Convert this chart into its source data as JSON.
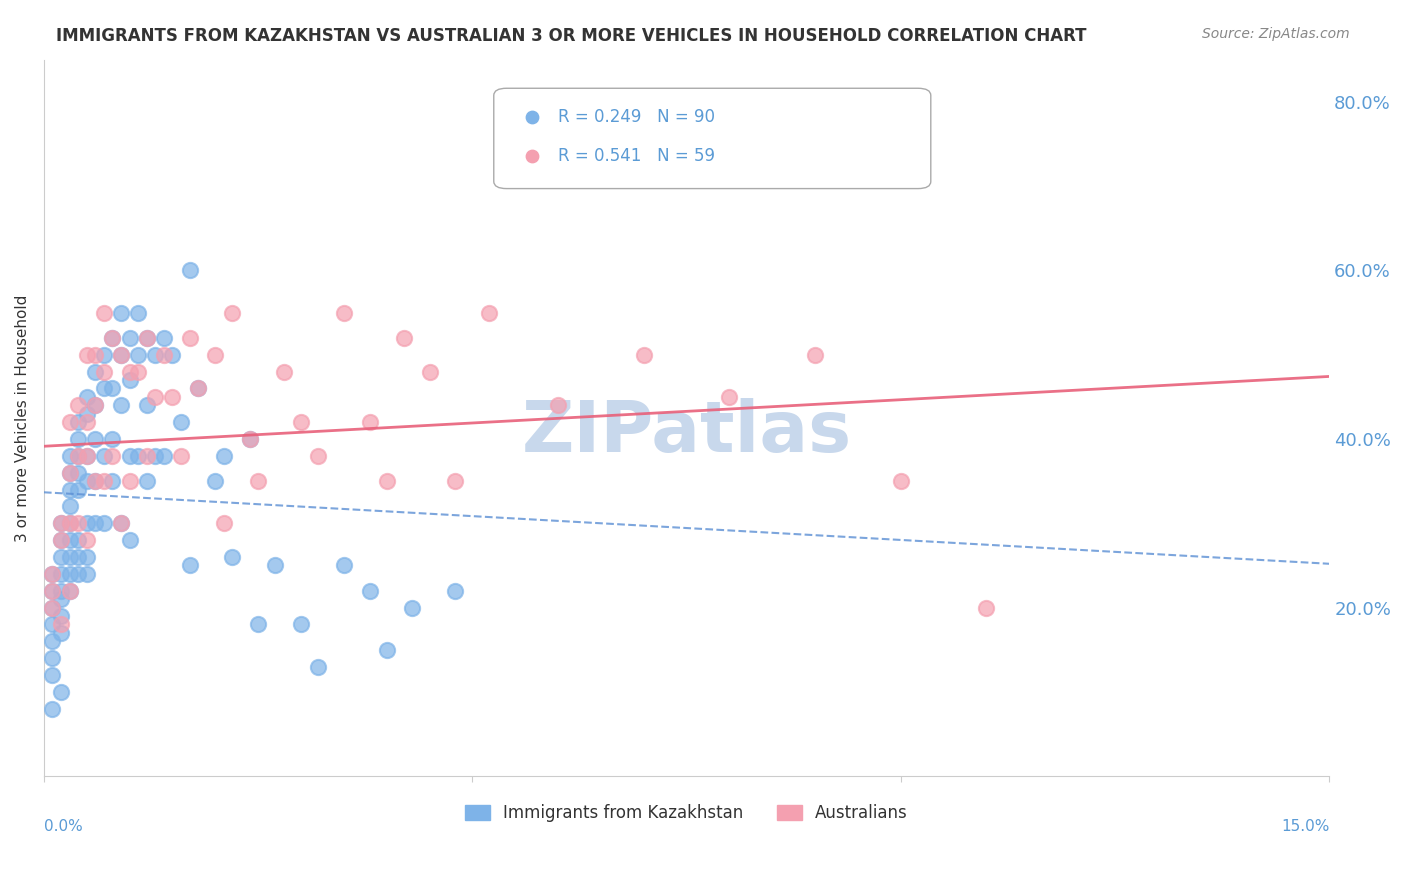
{
  "title": "IMMIGRANTS FROM KAZAKHSTAN VS AUSTRALIAN 3 OR MORE VEHICLES IN HOUSEHOLD CORRELATION CHART",
  "source": "Source: ZipAtlas.com",
  "xlabel_bottom_left": "0.0%",
  "xlabel_bottom_right": "15.0%",
  "ylabel": "3 or more Vehicles in Household",
  "right_yticks": [
    "20.0%",
    "40.0%",
    "60.0%",
    "80.0%"
  ],
  "right_ytick_vals": [
    0.2,
    0.4,
    0.6,
    0.8
  ],
  "xlim": [
    0.0,
    0.15
  ],
  "ylim": [
    0.0,
    0.85
  ],
  "series": [
    {
      "label": "Immigrants from Kazakhstan",
      "R": 0.249,
      "N": 90,
      "color": "#7EB3E8",
      "line_color": "#5B8FD4",
      "line_style": "dashed",
      "x": [
        0.001,
        0.001,
        0.001,
        0.001,
        0.001,
        0.001,
        0.001,
        0.001,
        0.002,
        0.002,
        0.002,
        0.002,
        0.002,
        0.002,
        0.002,
        0.002,
        0.002,
        0.003,
        0.003,
        0.003,
        0.003,
        0.003,
        0.003,
        0.003,
        0.003,
        0.003,
        0.004,
        0.004,
        0.004,
        0.004,
        0.004,
        0.004,
        0.004,
        0.004,
        0.005,
        0.005,
        0.005,
        0.005,
        0.005,
        0.005,
        0.005,
        0.006,
        0.006,
        0.006,
        0.006,
        0.006,
        0.007,
        0.007,
        0.007,
        0.007,
        0.008,
        0.008,
        0.008,
        0.008,
        0.009,
        0.009,
        0.009,
        0.009,
        0.01,
        0.01,
        0.01,
        0.01,
        0.011,
        0.011,
        0.011,
        0.012,
        0.012,
        0.012,
        0.013,
        0.013,
        0.014,
        0.014,
        0.015,
        0.016,
        0.017,
        0.017,
        0.018,
        0.02,
        0.021,
        0.022,
        0.024,
        0.025,
        0.027,
        0.03,
        0.032,
        0.035,
        0.038,
        0.04,
        0.043,
        0.048
      ],
      "y": [
        0.24,
        0.22,
        0.2,
        0.18,
        0.16,
        0.14,
        0.12,
        0.08,
        0.3,
        0.28,
        0.26,
        0.24,
        0.22,
        0.21,
        0.19,
        0.17,
        0.1,
        0.38,
        0.36,
        0.34,
        0.32,
        0.3,
        0.28,
        0.26,
        0.24,
        0.22,
        0.42,
        0.4,
        0.38,
        0.36,
        0.34,
        0.28,
        0.26,
        0.24,
        0.45,
        0.43,
        0.38,
        0.35,
        0.3,
        0.26,
        0.24,
        0.48,
        0.44,
        0.4,
        0.35,
        0.3,
        0.5,
        0.46,
        0.38,
        0.3,
        0.52,
        0.46,
        0.4,
        0.35,
        0.55,
        0.5,
        0.44,
        0.3,
        0.52,
        0.47,
        0.38,
        0.28,
        0.55,
        0.5,
        0.38,
        0.52,
        0.44,
        0.35,
        0.5,
        0.38,
        0.52,
        0.38,
        0.5,
        0.42,
        0.6,
        0.25,
        0.46,
        0.35,
        0.38,
        0.26,
        0.4,
        0.18,
        0.25,
        0.18,
        0.13,
        0.25,
        0.22,
        0.15,
        0.2,
        0.22
      ]
    },
    {
      "label": "Australians",
      "R": 0.541,
      "N": 59,
      "color": "#F4A0B0",
      "line_color": "#E8607A",
      "line_style": "solid",
      "x": [
        0.001,
        0.001,
        0.001,
        0.002,
        0.002,
        0.002,
        0.003,
        0.003,
        0.003,
        0.003,
        0.004,
        0.004,
        0.004,
        0.005,
        0.005,
        0.005,
        0.005,
        0.006,
        0.006,
        0.006,
        0.007,
        0.007,
        0.007,
        0.008,
        0.008,
        0.009,
        0.009,
        0.01,
        0.01,
        0.011,
        0.012,
        0.012,
        0.013,
        0.014,
        0.015,
        0.016,
        0.017,
        0.018,
        0.02,
        0.021,
        0.022,
        0.024,
        0.025,
        0.028,
        0.03,
        0.032,
        0.035,
        0.038,
        0.04,
        0.042,
        0.045,
        0.048,
        0.052,
        0.06,
        0.07,
        0.08,
        0.09,
        0.1,
        0.11
      ],
      "y": [
        0.24,
        0.22,
        0.2,
        0.3,
        0.28,
        0.18,
        0.42,
        0.36,
        0.3,
        0.22,
        0.44,
        0.38,
        0.3,
        0.5,
        0.42,
        0.38,
        0.28,
        0.5,
        0.44,
        0.35,
        0.55,
        0.48,
        0.35,
        0.52,
        0.38,
        0.5,
        0.3,
        0.48,
        0.35,
        0.48,
        0.52,
        0.38,
        0.45,
        0.5,
        0.45,
        0.38,
        0.52,
        0.46,
        0.5,
        0.3,
        0.55,
        0.4,
        0.35,
        0.48,
        0.42,
        0.38,
        0.55,
        0.42,
        0.35,
        0.52,
        0.48,
        0.35,
        0.55,
        0.44,
        0.5,
        0.45,
        0.5,
        0.35,
        0.2
      ]
    }
  ],
  "watermark": "ZIPatlas",
  "watermark_color": "#C8D8EC",
  "background_color": "#FFFFFF",
  "grid_color": "#CCCCCC",
  "title_color": "#333333",
  "right_axis_color": "#5B9BD5",
  "legend_R_color": "#5B9BD5",
  "legend_N_color": "#FF6680"
}
